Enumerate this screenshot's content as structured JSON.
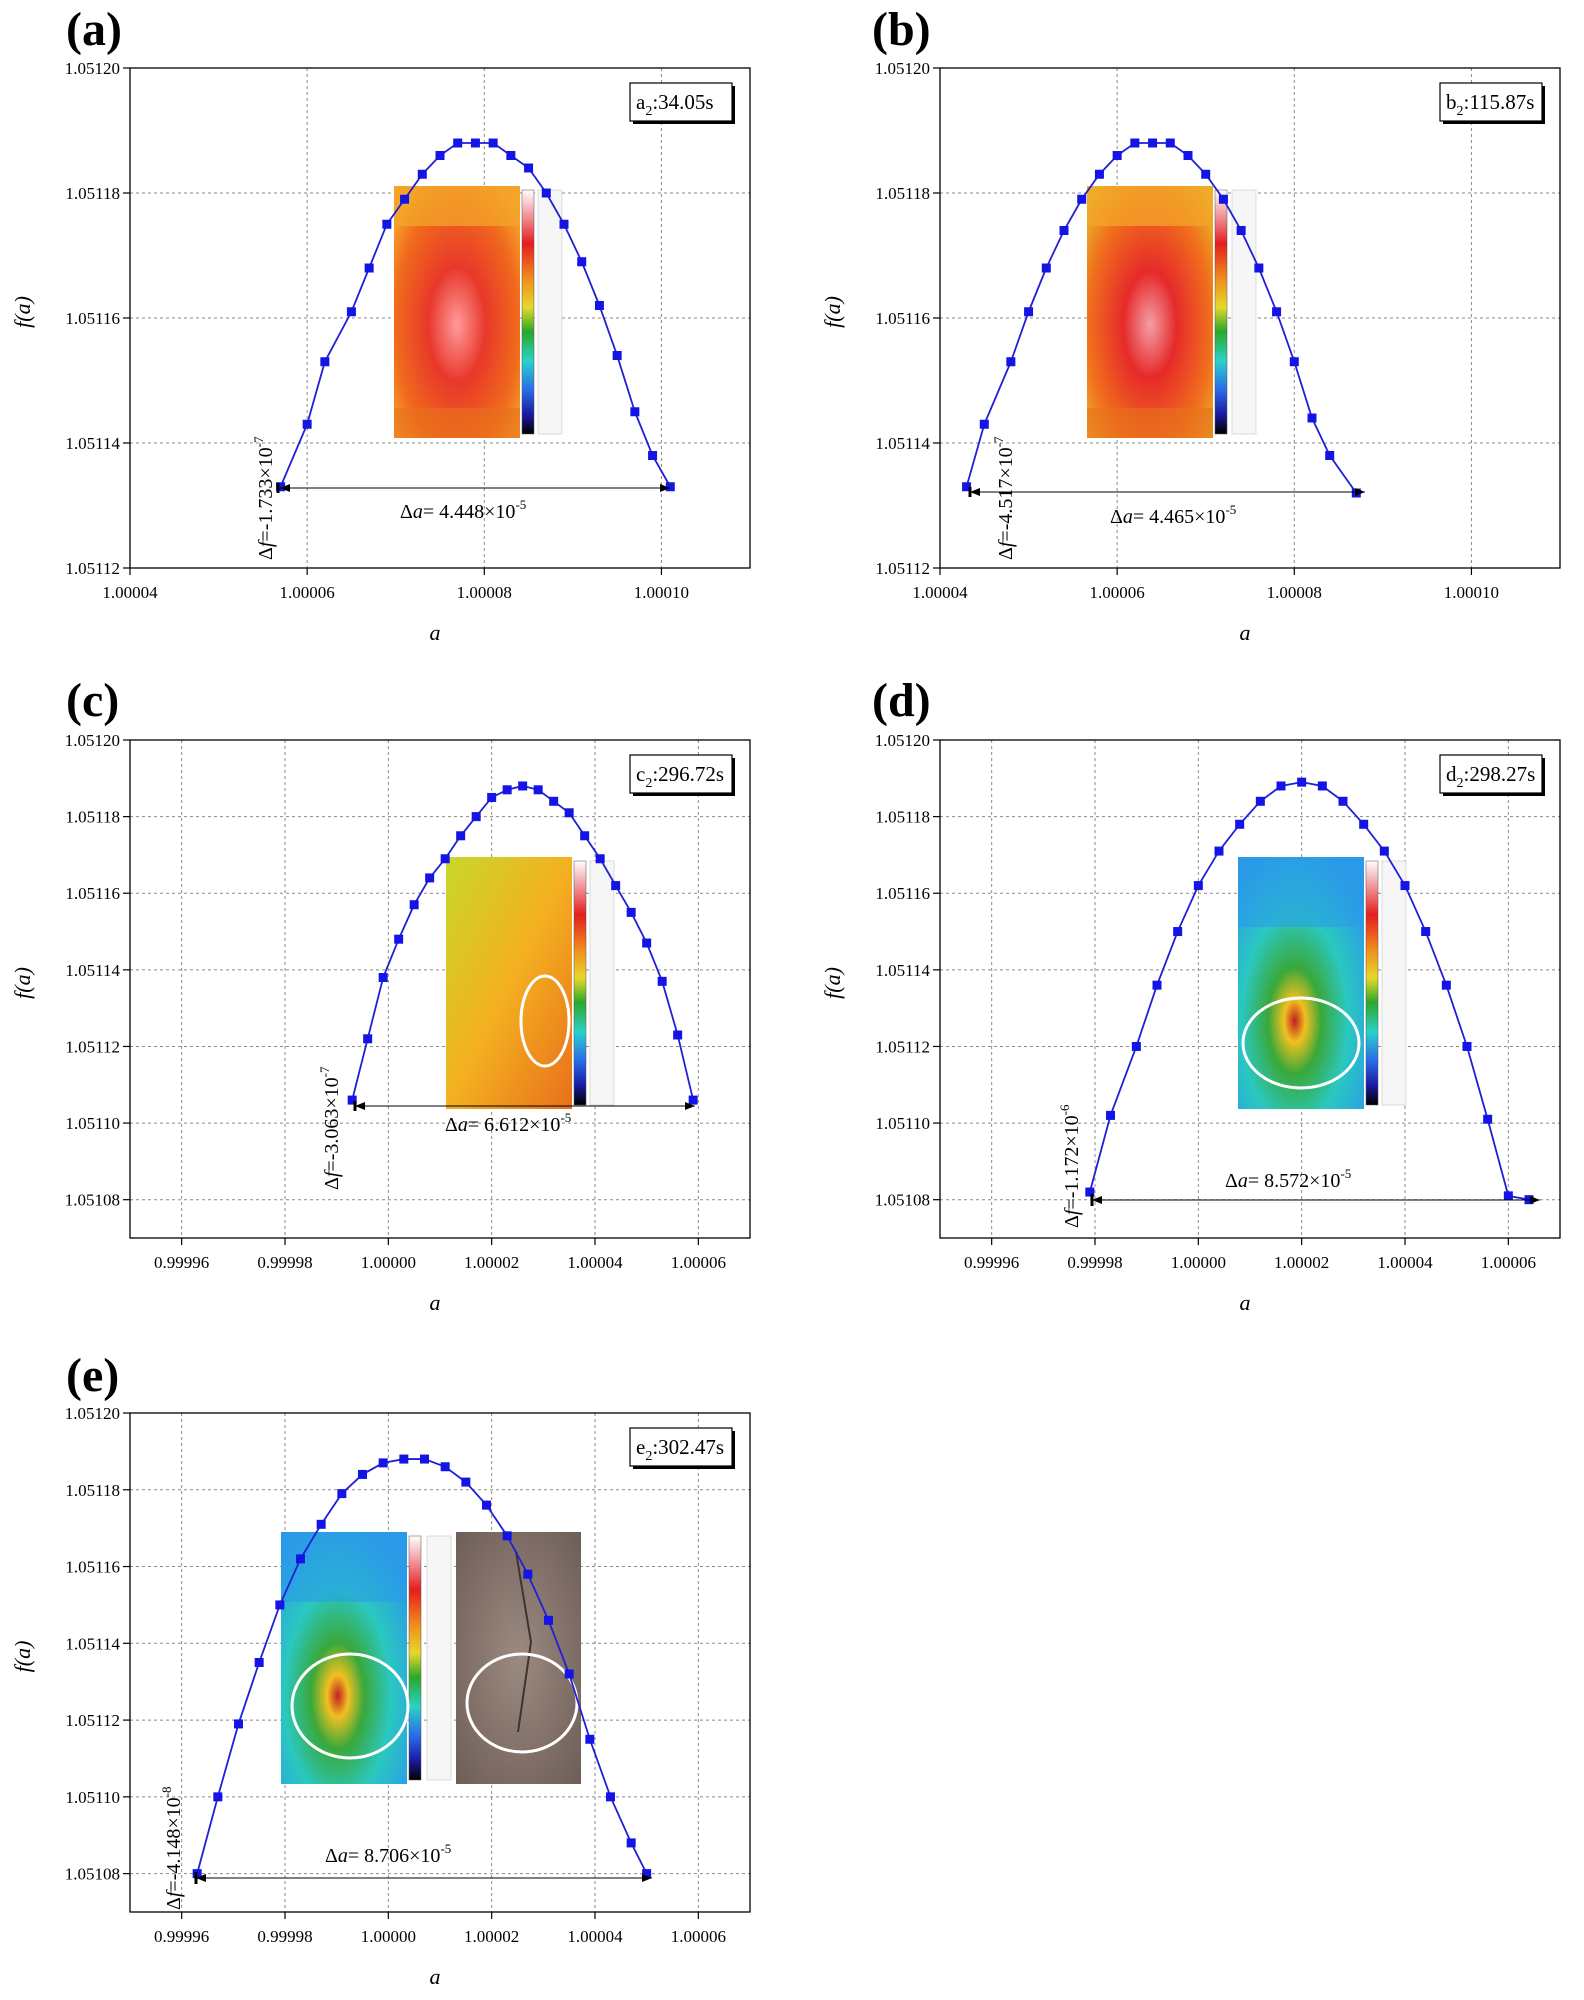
{
  "figure": {
    "panel_letters": [
      "(a)",
      "(b)",
      "(c)",
      "(d)",
      "(e)"
    ]
  },
  "colors": {
    "series": "#1f1fd6",
    "marker": "#1414e6",
    "axis": "#000000",
    "grid": "#8a8a8a"
  },
  "chart_data": [
    {
      "type": "line",
      "panel": "(a)",
      "legend_box": {
        "main": "a",
        "sub": "2",
        "rest": ":34.05s"
      },
      "xlabel": "a",
      "ylabel": "f(a)",
      "xlim": [
        1.00004,
        1.00011
      ],
      "ylim": [
        1.05112,
        1.0512
      ],
      "xticks": [
        1.00004,
        1.00006,
        1.00008,
        1.0001
      ],
      "xtick_labels": [
        "1.00004",
        "1.00006",
        "1.00008",
        "1.00010"
      ],
      "yticks": [
        1.05112,
        1.05114,
        1.05116,
        1.05118,
        1.0512
      ],
      "ytick_labels": [
        "1.05112",
        "1.05114",
        "1.05116",
        "1.05118",
        "1.05120"
      ],
      "grid": true,
      "annotations": {
        "delta_f": {
          "prefix": "Δ",
          "var": "f",
          "value": "=-1.733×10",
          "exp": "-7"
        },
        "delta_a": {
          "prefix": "Δ",
          "var": "a",
          "value": "= 4.448×10",
          "exp": "-5"
        }
      },
      "curve": {
        "x_left": 1.000057,
        "x_right": 1.000101,
        "y_base": 1.051133,
        "y_peak": 1.051188
      },
      "x": [
        1.000057,
        1.00006,
        1.000062,
        1.000065,
        1.000067,
        1.000069,
        1.000071,
        1.000073,
        1.000075,
        1.000077,
        1.000079,
        1.000081,
        1.000083,
        1.000085,
        1.000087,
        1.000089,
        1.000091,
        1.000093,
        1.000095,
        1.000097,
        1.000099,
        1.000101
      ],
      "y": [
        1.051133,
        1.051143,
        1.051153,
        1.051161,
        1.051168,
        1.051175,
        1.051179,
        1.051183,
        1.051186,
        1.051188,
        1.051188,
        1.051188,
        1.051186,
        1.051184,
        1.05118,
        1.051175,
        1.051169,
        1.051162,
        1.051154,
        1.051145,
        1.051138,
        1.051133
      ],
      "inset": "thermal-a"
    },
    {
      "type": "line",
      "panel": "(b)",
      "legend_box": {
        "main": "b",
        "sub": "2",
        "rest": ":115.87s"
      },
      "xlabel": "a",
      "ylabel": "f(a)",
      "xlim": [
        1.00004,
        1.00011
      ],
      "ylim": [
        1.05112,
        1.0512
      ],
      "xticks": [
        1.00004,
        1.00006,
        1.00008,
        1.0001
      ],
      "xtick_labels": [
        "1.00004",
        "1.00006",
        "1.00008",
        "1.00010"
      ],
      "yticks": [
        1.05112,
        1.05114,
        1.05116,
        1.05118,
        1.0512
      ],
      "ytick_labels": [
        "1.05112",
        "1.05114",
        "1.05116",
        "1.05118",
        "1.05120"
      ],
      "grid": true,
      "annotations": {
        "delta_f": {
          "prefix": "Δ",
          "var": "f",
          "value": "=-4.517×10",
          "exp": "-7"
        },
        "delta_a": {
          "prefix": "Δ",
          "var": "a",
          "value": "= 4.465×10",
          "exp": "-5"
        }
      },
      "x": [
        1.000043,
        1.000045,
        1.000048,
        1.00005,
        1.000052,
        1.000054,
        1.000056,
        1.000058,
        1.00006,
        1.000062,
        1.000064,
        1.000066,
        1.000068,
        1.00007,
        1.000072,
        1.000074,
        1.000076,
        1.000078,
        1.00008,
        1.000082,
        1.000084,
        1.000087
      ],
      "y": [
        1.051133,
        1.051143,
        1.051153,
        1.051161,
        1.051168,
        1.051174,
        1.051179,
        1.051183,
        1.051186,
        1.051188,
        1.051188,
        1.051188,
        1.051186,
        1.051183,
        1.051179,
        1.051174,
        1.051168,
        1.051161,
        1.051153,
        1.051144,
        1.051138,
        1.051132
      ],
      "inset": "thermal-b"
    },
    {
      "type": "line",
      "panel": "(c)",
      "legend_box": {
        "main": "c",
        "sub": "2",
        "rest": ":296.72s"
      },
      "xlabel": "a",
      "ylabel": "f(a)",
      "xlim": [
        0.99995,
        1.00007
      ],
      "ylim": [
        1.05107,
        1.0512
      ],
      "xticks": [
        0.99996,
        0.99998,
        1.0,
        1.00002,
        1.00004,
        1.00006
      ],
      "xtick_labels": [
        "0.99996",
        "0.99998",
        "1.00000",
        "1.00002",
        "1.00004",
        "1.00006"
      ],
      "yticks": [
        1.05108,
        1.0511,
        1.05112,
        1.05114,
        1.05116,
        1.05118,
        1.0512
      ],
      "ytick_labels": [
        "1.05108",
        "1.05110",
        "1.05112",
        "1.05114",
        "1.05116",
        "1.05118",
        "1.05120"
      ],
      "grid": true,
      "annotations": {
        "delta_f": {
          "prefix": "Δ",
          "var": "f",
          "value": "=-3.063×10",
          "exp": "-7"
        },
        "delta_a": {
          "prefix": "Δ",
          "var": "a",
          "value": "= 6.612×10",
          "exp": "-5"
        }
      },
      "x": [
        0.999993,
        0.999996,
        0.999999,
        1.000002,
        1.000005,
        1.000008,
        1.000011,
        1.000014,
        1.000017,
        1.00002,
        1.000023,
        1.000026,
        1.000029,
        1.000032,
        1.000035,
        1.000038,
        1.000041,
        1.000044,
        1.000047,
        1.00005,
        1.000053,
        1.000056,
        1.000059
      ],
      "y": [
        1.051106,
        1.051122,
        1.051138,
        1.051148,
        1.051157,
        1.051164,
        1.051169,
        1.051175,
        1.05118,
        1.051185,
        1.051187,
        1.051188,
        1.051187,
        1.051184,
        1.051181,
        1.051175,
        1.051169,
        1.051162,
        1.051155,
        1.051147,
        1.051137,
        1.051123,
        1.051106
      ],
      "inset": "thermal-c"
    },
    {
      "type": "line",
      "panel": "(d)",
      "legend_box": {
        "main": "d",
        "sub": "2",
        "rest": ":298.27s"
      },
      "xlabel": "a",
      "ylabel": "f(a)",
      "xlim": [
        0.99995,
        1.00007
      ],
      "ylim": [
        1.05107,
        1.0512
      ],
      "xticks": [
        0.99996,
        0.99998,
        1.0,
        1.00002,
        1.00004,
        1.00006
      ],
      "xtick_labels": [
        "0.99996",
        "0.99998",
        "1.00000",
        "1.00002",
        "1.00004",
        "1.00006"
      ],
      "yticks": [
        1.05108,
        1.0511,
        1.05112,
        1.05114,
        1.05116,
        1.05118,
        1.0512
      ],
      "ytick_labels": [
        "1.05108",
        "1.05110",
        "1.05112",
        "1.05114",
        "1.05116",
        "1.05118",
        "1.05120"
      ],
      "grid": true,
      "annotations": {
        "delta_f": {
          "prefix": "Δ",
          "var": "f",
          "value": "=-1.172×10",
          "exp": "-6"
        },
        "delta_a": {
          "prefix": "Δ",
          "var": "a",
          "value": "= 8.572×10",
          "exp": "-5"
        }
      },
      "x": [
        0.999979,
        0.999983,
        0.999988,
        0.999992,
        0.999996,
        1.0,
        1.000004,
        1.000008,
        1.000012,
        1.000016,
        1.00002,
        1.000024,
        1.000028,
        1.000032,
        1.000036,
        1.00004,
        1.000044,
        1.000048,
        1.000052,
        1.000056,
        1.00006,
        1.000064
      ],
      "y": [
        1.051082,
        1.051102,
        1.05112,
        1.051136,
        1.05115,
        1.051162,
        1.051171,
        1.051178,
        1.051184,
        1.051188,
        1.051189,
        1.051188,
        1.051184,
        1.051178,
        1.051171,
        1.051162,
        1.05115,
        1.051136,
        1.05112,
        1.051101,
        1.051081,
        1.05108
      ],
      "inset": "thermal-d"
    },
    {
      "type": "line",
      "panel": "(e)",
      "legend_box": {
        "main": "e",
        "sub": "2",
        "rest": ":302.47s"
      },
      "xlabel": "a",
      "ylabel": "f(a)",
      "xlim": [
        0.99995,
        1.00007
      ],
      "ylim": [
        1.05107,
        1.0512
      ],
      "xticks": [
        0.99996,
        0.99998,
        1.0,
        1.00002,
        1.00004,
        1.00006
      ],
      "xtick_labels": [
        "0.99996",
        "0.99998",
        "1.00000",
        "1.00002",
        "1.00004",
        "1.00006"
      ],
      "yticks": [
        1.05108,
        1.0511,
        1.05112,
        1.05114,
        1.05116,
        1.05118,
        1.0512
      ],
      "ytick_labels": [
        "1.05108",
        "1.05110",
        "1.05112",
        "1.05114",
        "1.05116",
        "1.05118",
        "1.05120"
      ],
      "grid": true,
      "annotations": {
        "delta_f": {
          "prefix": "Δ",
          "var": "f",
          "value": "=-4.148×10",
          "exp": "-8"
        },
        "delta_a": {
          "prefix": "Δ",
          "var": "a",
          "value": "= 8.706×10",
          "exp": "-5"
        }
      },
      "x": [
        0.999963,
        0.999967,
        0.999971,
        0.999975,
        0.999979,
        0.999983,
        0.999987,
        0.999991,
        0.999995,
        0.999999,
        1.000003,
        1.000007,
        1.000011,
        1.000015,
        1.000019,
        1.000023,
        1.000027,
        1.000031,
        1.000035,
        1.000039,
        1.000043,
        1.000047,
        1.00005
      ],
      "y": [
        1.05108,
        1.0511,
        1.051119,
        1.051135,
        1.05115,
        1.051162,
        1.051171,
        1.051179,
        1.051184,
        1.051187,
        1.051188,
        1.051188,
        1.051186,
        1.051182,
        1.051176,
        1.051168,
        1.051158,
        1.051146,
        1.051132,
        1.051115,
        1.0511,
        1.051088,
        1.05108
      ],
      "inset": "thermal-e"
    }
  ]
}
